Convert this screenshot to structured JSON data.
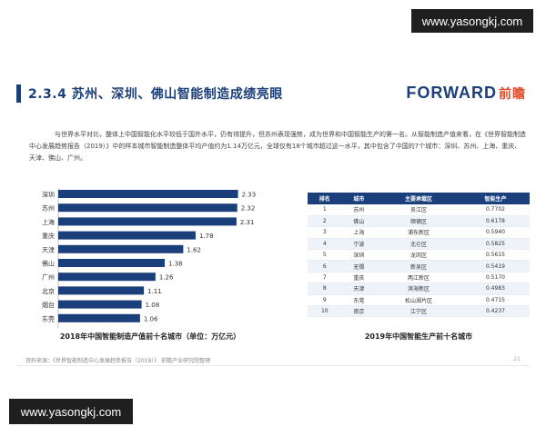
{
  "watermark": {
    "top": "www.yasongkj.com",
    "bottom": "www.yasongkj.com"
  },
  "header": {
    "title": "2.3.4 苏州、深圳、佛山智能制造成绩亮眼",
    "logo_en": "FORWARD",
    "logo_cn": "前瞻"
  },
  "intro": "与世界水平对比，整体上中国智能化水平较低于国外水平，仍有待提升，但苏州表现强势，成为世界和中国智能生产的第一名。从智能制造产值来看，在《世界智能制造中心发展趋势报告（2019）》中的样本城市智能制造整体平均产值约为1.14万亿元，全球仅有18个城市超过这一水平，其中包含了中国的7个城市：深圳、苏州、上海、重庆、天津、佛山、广州。",
  "chart_data": {
    "type": "bar",
    "orientation": "horizontal",
    "categories": [
      "深圳",
      "苏州",
      "上海",
      "重庆",
      "天津",
      "佛山",
      "广州",
      "北京",
      "烟台",
      "东莞"
    ],
    "values": [
      2.33,
      2.32,
      2.31,
      1.78,
      1.62,
      1.38,
      1.26,
      1.11,
      1.08,
      1.06
    ],
    "value_labels": [
      "2.33",
      "2.32",
      "2.31",
      "1.78",
      "1.62",
      "1.38",
      "1.26",
      "1.11",
      "1.08",
      "1.06"
    ],
    "xlim": [
      0,
      2.5
    ],
    "title": "2018年中国智能制造产值前十名城市（单位：万亿元）",
    "bar_color": "#1b3f7a",
    "grid": false,
    "legend": "none"
  },
  "table": {
    "caption": "2019年中国智能生产前十名城市",
    "headers": [
      "排名",
      "城市",
      "主要承载区",
      "智能生产"
    ],
    "rows": [
      [
        "1",
        "苏州",
        "吴江区",
        "0.7702"
      ],
      [
        "2",
        "佛山",
        "顺德区",
        "0.6178"
      ],
      [
        "3",
        "上海",
        "浦东新区",
        "0.5940"
      ],
      [
        "4",
        "宁波",
        "北仑区",
        "0.5825"
      ],
      [
        "5",
        "深圳",
        "龙岗区",
        "0.5615"
      ],
      [
        "6",
        "无锡",
        "新吴区",
        "0.5419"
      ],
      [
        "7",
        "重庆",
        "两江新区",
        "0.5170"
      ],
      [
        "8",
        "天津",
        "滨海新区",
        "0.4983"
      ],
      [
        "9",
        "东莞",
        "松山湖片区",
        "0.4715"
      ],
      [
        "10",
        "南京",
        "江宁区",
        "0.4237"
      ]
    ]
  },
  "footer": {
    "source": "资料来源：《世界智能制造中心发展趋势报告（2019）》 前瞻产业研究院整理",
    "page": "21"
  }
}
